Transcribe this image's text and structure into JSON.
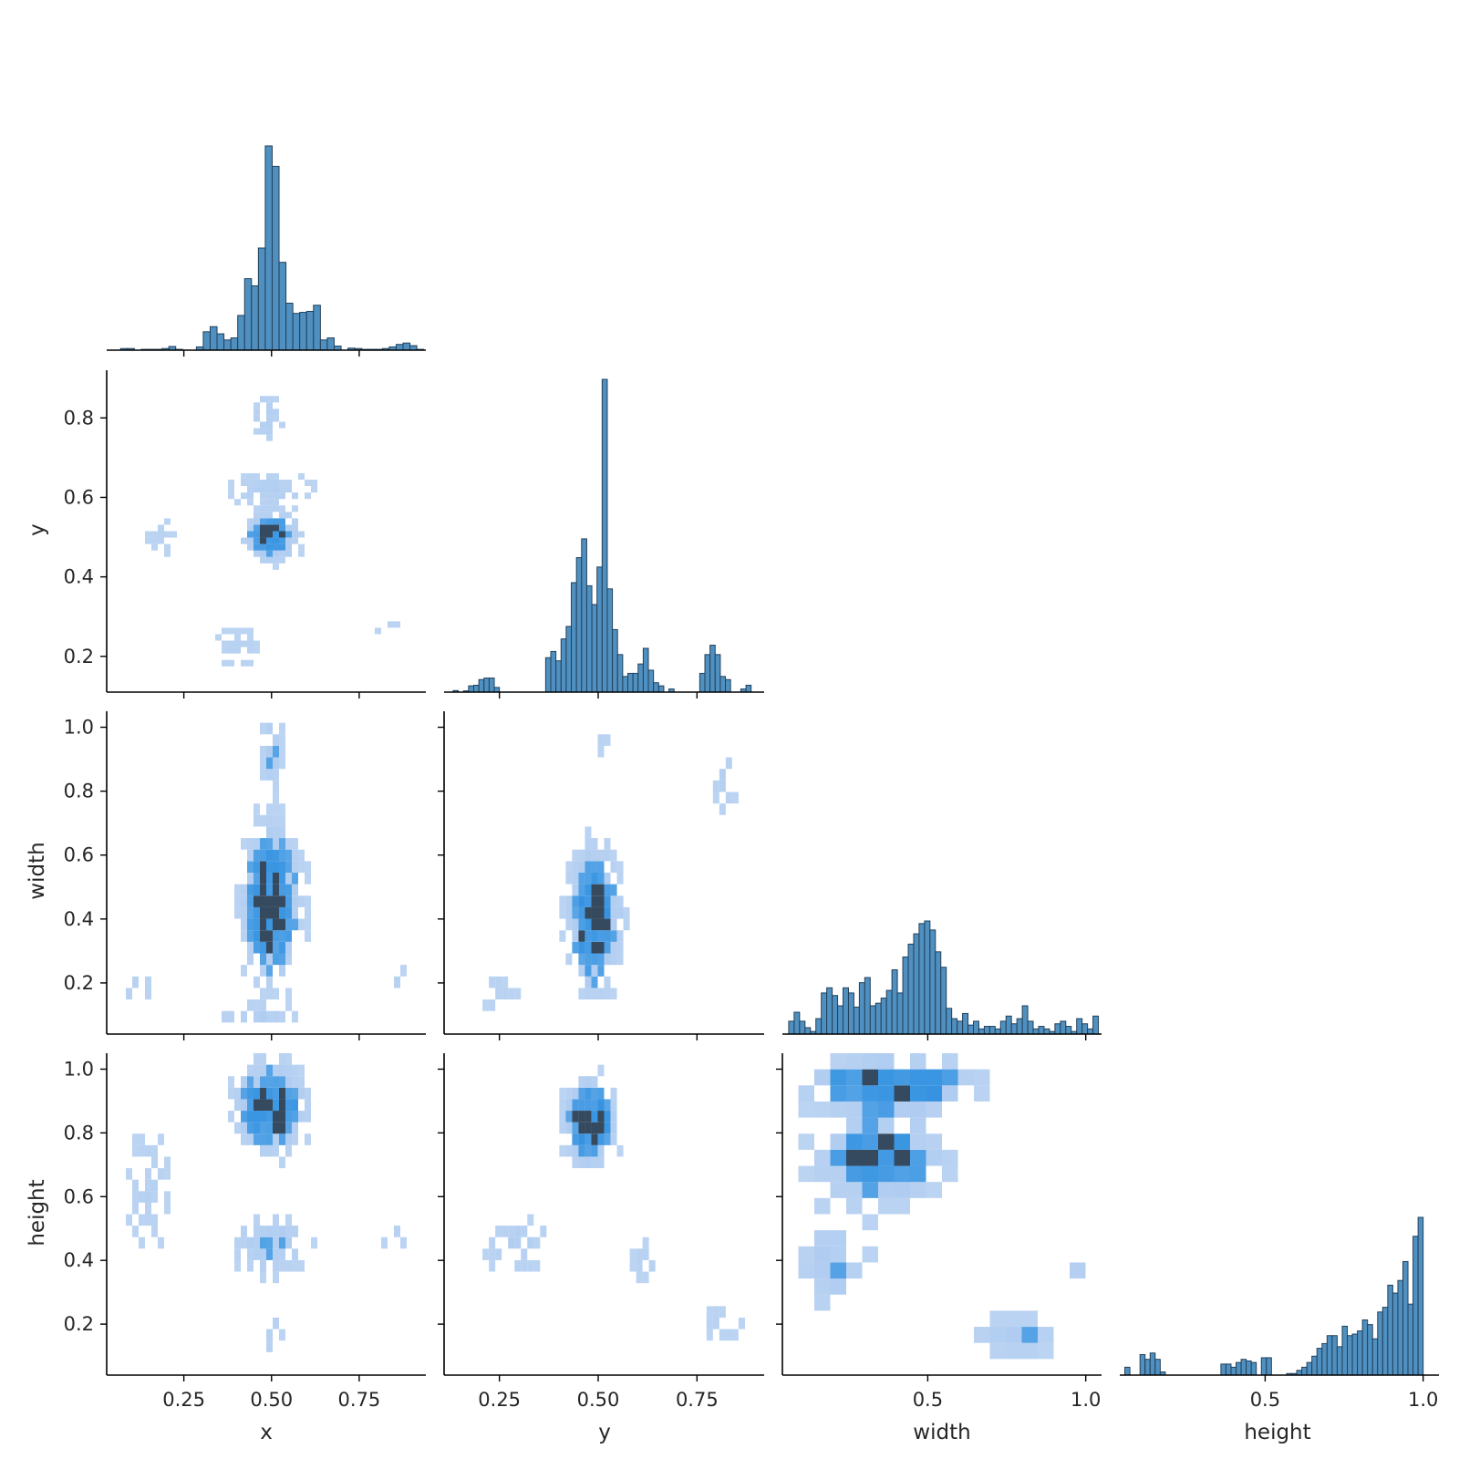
{
  "chart_data": {
    "type": "pairplot",
    "variables": [
      "x",
      "y",
      "width",
      "height"
    ],
    "colors": {
      "bar_fill": "#4f90c0",
      "bar_edge": "#23405a",
      "heat_low": "#a9c8ef",
      "heat_mid": "#2f8fe0",
      "heat_high": "#35495f",
      "axis": "#000000",
      "text": "#262626"
    },
    "ticks": {
      "x": {
        "values": [
          0.25,
          0.5,
          0.75
        ],
        "labels": [
          "0.25",
          "0.50",
          "0.75"
        ]
      },
      "y": {
        "values": [
          0.25,
          0.5,
          0.75
        ],
        "labels": [
          "0.25",
          "0.50",
          "0.75"
        ],
        "row_values": [
          0.2,
          0.4,
          0.6,
          0.8
        ],
        "row_labels": [
          "0.2",
          "0.4",
          "0.6",
          "0.8"
        ]
      },
      "width": {
        "values": [
          0.5,
          1.0
        ],
        "labels": [
          "0.5",
          "1.0"
        ],
        "row_values": [
          0.2,
          0.4,
          0.6,
          0.8,
          1.0
        ],
        "row_labels": [
          "0.2",
          "0.4",
          "0.6",
          "0.8",
          "1.0"
        ]
      },
      "height": {
        "values": [
          0.5,
          1.0
        ],
        "labels": [
          "0.5",
          "1.0"
        ],
        "row_values": [
          0.2,
          0.4,
          0.6,
          0.8,
          1.0
        ],
        "row_labels": [
          "0.2",
          "0.4",
          "0.6",
          "0.8",
          "1.0"
        ]
      }
    },
    "ranges": {
      "x": [
        0.03,
        0.94
      ],
      "y": [
        0.11,
        0.92
      ],
      "width": [
        0.04,
        1.05
      ],
      "height": [
        0.04,
        1.05
      ]
    },
    "diagonal": {
      "x": {
        "bins": [
          0.05,
          0.934
        ],
        "counts": [
          0,
          0.8,
          0.8,
          0,
          0.4,
          0.4,
          0.4,
          0.8,
          1.8,
          0.4,
          0,
          0,
          1.6,
          9,
          11.5,
          8,
          5,
          6,
          17,
          35,
          31.5,
          50,
          100,
          90,
          43,
          23,
          18,
          18.5,
          19,
          22,
          5,
          6,
          2,
          0,
          1,
          0.8,
          0.4,
          0.4,
          0.4,
          0.8,
          1.6,
          2.8,
          3.5,
          2.2,
          0.4
        ]
      },
      "y": {
        "bins": [
          0.12,
          0.9
        ],
        "counts": [
          0,
          0.5,
          0,
          0.4,
          2,
          2.2,
          4,
          4.5,
          4.5,
          1.5,
          0,
          0,
          0,
          0,
          0,
          0,
          0,
          0,
          0,
          11,
          13,
          10,
          17,
          21,
          35,
          43,
          49,
          34,
          28,
          40,
          100,
          33,
          20,
          12,
          5,
          6,
          6,
          9,
          14,
          7,
          3,
          2,
          0,
          1,
          0,
          0,
          0,
          0,
          0,
          6,
          12,
          15,
          12,
          5,
          4,
          0,
          0,
          1,
          2.2,
          0
        ]
      },
      "width": {
        "bins": [
          0.06,
          1.04
        ],
        "counts": [
          5,
          8.5,
          5,
          2.5,
          1,
          6,
          16,
          18,
          15,
          11,
          18,
          16,
          10.5,
          20,
          22,
          11,
          12,
          14,
          17,
          25,
          16,
          30,
          35,
          39,
          43,
          44,
          40.5,
          32,
          26,
          10,
          6,
          5,
          8,
          3.5,
          5,
          2,
          3,
          3,
          2,
          5,
          7,
          4,
          6,
          11,
          5,
          2,
          3,
          2,
          1,
          4,
          5,
          3,
          1,
          6,
          4,
          2,
          7
        ]
      },
      "height": {
        "bins": [
          0.04,
          1.0
        ],
        "counts": [
          0,
          5,
          0,
          0,
          13,
          10,
          14,
          10,
          2,
          0,
          0,
          0,
          0,
          0,
          0,
          0,
          0,
          0,
          0,
          0,
          7,
          7,
          5,
          8,
          10,
          9,
          8,
          0,
          11,
          11,
          0,
          0,
          0,
          1,
          1,
          3,
          5,
          8,
          12,
          17,
          20,
          25,
          25,
          18,
          31,
          25,
          26,
          28,
          35,
          32,
          23,
          40,
          43,
          57,
          52,
          60,
          72,
          45,
          88,
          100
        ]
      }
    }
  }
}
